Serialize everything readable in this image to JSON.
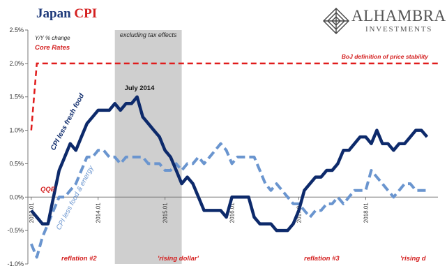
{
  "title": {
    "part1": "Japan",
    "part2": "CPI"
  },
  "logo": {
    "name": "ALHAMBRA",
    "sub": "INVESTMENTS"
  },
  "colors": {
    "series1": "#0d2a6b",
    "series2": "#6a95cf",
    "boj_line": "#e01b1b",
    "shade": "#cfcfcf",
    "red_text": "#d42020",
    "axis_text": "#333333"
  },
  "chart_data": {
    "type": "line",
    "title": "Japan CPI",
    "subtitle_lines": [
      "Y/Y % change",
      "Core Rates"
    ],
    "ylim": [
      -1.0,
      2.5
    ],
    "yticks": [
      -1.0,
      -0.5,
      0.0,
      0.5,
      1.0,
      1.5,
      2.0,
      2.5
    ],
    "ytick_labels": [
      "-1.0%",
      "-0.5%",
      "0.0%",
      "0.5%",
      "1.0%",
      "1.5%",
      "2.0%",
      "2.5%"
    ],
    "xlim": [
      2012.95,
      2019.08
    ],
    "xticks": [
      2013.0,
      2014.0,
      2015.0,
      2016.0,
      2017.0,
      2018.0
    ],
    "xtick_labels": [
      "2013.01",
      "2014.01",
      "2015.01",
      "2016.01",
      "2017.01",
      "2018.01"
    ],
    "grid": false,
    "shaded_region": {
      "x_start": 2014.25,
      "x_end": 2015.25,
      "label": "excluding tax effects"
    },
    "series": [
      {
        "name": "CPI less fresh food",
        "style": "solid",
        "x": [
          2013.0,
          2013.083,
          2013.167,
          2013.25,
          2013.333,
          2013.417,
          2013.5,
          2013.583,
          2013.667,
          2013.75,
          2013.833,
          2013.917,
          2014.0,
          2014.083,
          2014.167,
          2014.25,
          2014.333,
          2014.417,
          2014.5,
          2014.583,
          2014.667,
          2014.75,
          2014.833,
          2014.917,
          2015.0,
          2015.083,
          2015.167,
          2015.25,
          2015.333,
          2015.417,
          2015.5,
          2015.583,
          2015.667,
          2015.75,
          2015.833,
          2015.917,
          2016.0,
          2016.083,
          2016.167,
          2016.25,
          2016.333,
          2016.417,
          2016.5,
          2016.583,
          2016.667,
          2016.75,
          2016.833,
          2016.917,
          2017.0,
          2017.083,
          2017.167,
          2017.25,
          2017.333,
          2017.417,
          2017.5,
          2017.583,
          2017.667,
          2017.75,
          2017.833,
          2017.917,
          2018.0,
          2018.083,
          2018.167,
          2018.25,
          2018.333,
          2018.417,
          2018.5,
          2018.583,
          2018.667,
          2018.75,
          2018.833,
          2018.917
        ],
        "values": [
          -0.2,
          -0.3,
          -0.4,
          -0.4,
          0.0,
          0.4,
          0.6,
          0.8,
          0.7,
          0.9,
          1.1,
          1.2,
          1.3,
          1.3,
          1.3,
          1.4,
          1.3,
          1.4,
          1.4,
          1.5,
          1.2,
          1.1,
          1.0,
          0.9,
          0.7,
          0.6,
          0.4,
          0.2,
          0.3,
          0.2,
          0.0,
          -0.2,
          -0.2,
          -0.2,
          -0.2,
          -0.3,
          0.0,
          0.0,
          0.0,
          0.0,
          -0.3,
          -0.4,
          -0.4,
          -0.4,
          -0.5,
          -0.5,
          -0.5,
          -0.4,
          -0.2,
          0.1,
          0.2,
          0.3,
          0.3,
          0.4,
          0.4,
          0.5,
          0.7,
          0.7,
          0.8,
          0.9,
          0.9,
          0.8,
          1.0,
          0.8,
          0.8,
          0.7,
          0.8,
          0.8,
          0.9,
          1.0,
          1.0,
          0.9
        ]
      },
      {
        "name": "CPI less food & energy",
        "style": "dashed",
        "x": [
          2013.0,
          2013.083,
          2013.167,
          2013.25,
          2013.333,
          2013.417,
          2013.5,
          2013.583,
          2013.667,
          2013.75,
          2013.833,
          2013.917,
          2014.0,
          2014.083,
          2014.167,
          2014.25,
          2014.333,
          2014.417,
          2014.5,
          2014.583,
          2014.667,
          2014.75,
          2014.833,
          2014.917,
          2015.0,
          2015.083,
          2015.167,
          2015.25,
          2015.333,
          2015.417,
          2015.5,
          2015.583,
          2015.667,
          2015.75,
          2015.833,
          2015.917,
          2016.0,
          2016.083,
          2016.167,
          2016.25,
          2016.333,
          2016.417,
          2016.5,
          2016.583,
          2016.667,
          2016.75,
          2016.833,
          2016.917,
          2017.0,
          2017.083,
          2017.167,
          2017.25,
          2017.333,
          2017.417,
          2017.5,
          2017.583,
          2017.667,
          2017.75,
          2017.833,
          2017.917,
          2018.0,
          2018.083,
          2018.167,
          2018.25,
          2018.333,
          2018.417,
          2018.5,
          2018.583,
          2018.667,
          2018.75,
          2018.833,
          2018.917
        ],
        "values": [
          -0.7,
          -0.9,
          -0.6,
          -0.4,
          -0.2,
          0.0,
          0.0,
          0.1,
          0.2,
          0.4,
          0.6,
          0.6,
          0.7,
          0.7,
          0.6,
          0.6,
          0.5,
          0.6,
          0.6,
          0.6,
          0.6,
          0.5,
          0.5,
          0.5,
          0.4,
          0.4,
          0.5,
          0.4,
          0.5,
          0.5,
          0.6,
          0.5,
          0.6,
          0.7,
          0.8,
          0.7,
          0.5,
          0.6,
          0.6,
          0.6,
          0.6,
          0.4,
          0.2,
          0.1,
          0.2,
          0.1,
          0.0,
          -0.1,
          -0.1,
          -0.2,
          -0.3,
          -0.2,
          -0.2,
          -0.1,
          -0.1,
          0.0,
          -0.1,
          0.0,
          0.1,
          0.1,
          0.1,
          0.4,
          0.3,
          0.2,
          0.1,
          0.0,
          0.1,
          0.2,
          0.2,
          0.1,
          0.1,
          0.1
        ]
      },
      {
        "name": "BoJ definition of price stability",
        "style": "dashed",
        "x": [
          2013.0,
          2013.083,
          2019.08
        ],
        "values": [
          1.0,
          2.0,
          2.0
        ]
      }
    ],
    "annotations": [
      "excluding tax effects",
      "BoJ definition of price stability",
      "July 2014",
      "CPI less fresh food",
      "CPI less food & energy",
      "QQE",
      "reflation #2",
      "'rising dollar'",
      "reflation #3",
      "'rising d"
    ]
  }
}
